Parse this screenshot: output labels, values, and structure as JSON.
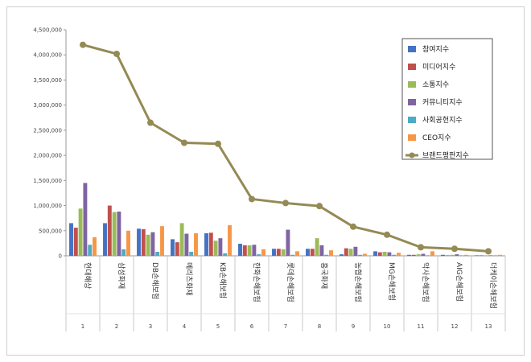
{
  "chart_data": {
    "type": "bar",
    "title": "",
    "xlabel": "",
    "ylabel": "",
    "ylim": [
      0,
      4500000
    ],
    "yticks": [
      "0",
      "500,000",
      "1,000,000",
      "1,500,000",
      "2,000,000",
      "2,500,000",
      "3,000,000",
      "3,500,000",
      "4,000,000",
      "4,500,000"
    ],
    "ytick_values": [
      0,
      500000,
      1000000,
      1500000,
      2000000,
      2500000,
      3000000,
      3500000,
      4000000,
      4500000
    ],
    "grid": false,
    "legend_position": "top-right",
    "categories": [
      "현대해상",
      "삼성화재",
      "DB손해보험",
      "메리츠화재",
      "KB손해보험",
      "한화손해보험",
      "롯데손해보험",
      "흥국화재",
      "농협손해보험",
      "MG손해보험",
      "악사손해보험",
      "AIG손해보험",
      "더케이손해보험"
    ],
    "ranks": [
      "1",
      "2",
      "3",
      "4",
      "5",
      "6",
      "7",
      "8",
      "9",
      "10",
      "11",
      "12",
      "13"
    ],
    "series": [
      {
        "name": "참여지수",
        "type": "bar",
        "color": "#4472c4",
        "values": [
          650000,
          650000,
          540000,
          330000,
          450000,
          240000,
          140000,
          140000,
          30000,
          90000,
          20000,
          20000,
          10000
        ]
      },
      {
        "name": "미디어지수",
        "type": "bar",
        "color": "#c0504d",
        "values": [
          560000,
          1000000,
          530000,
          270000,
          460000,
          210000,
          140000,
          140000,
          150000,
          70000,
          20000,
          10000,
          10000
        ]
      },
      {
        "name": "소통지수",
        "type": "bar",
        "color": "#9bbb59",
        "values": [
          940000,
          870000,
          420000,
          650000,
          300000,
          210000,
          130000,
          350000,
          140000,
          80000,
          30000,
          20000,
          10000
        ]
      },
      {
        "name": "커뮤니티지수",
        "type": "bar",
        "color": "#8064a2",
        "values": [
          1450000,
          880000,
          470000,
          440000,
          350000,
          220000,
          520000,
          210000,
          180000,
          70000,
          40000,
          30000,
          10000
        ]
      },
      {
        "name": "사회공헌지수",
        "type": "bar",
        "color": "#4bacc6",
        "values": [
          220000,
          130000,
          80000,
          80000,
          50000,
          30000,
          20000,
          20000,
          20000,
          20000,
          10000,
          10000,
          10000
        ]
      },
      {
        "name": "CEO지수",
        "type": "bar",
        "color": "#f79646",
        "values": [
          370000,
          500000,
          590000,
          450000,
          610000,
          130000,
          90000,
          110000,
          40000,
          60000,
          90000,
          20000,
          20000
        ]
      },
      {
        "name": "브랜드평판지수",
        "type": "line",
        "color": "#948a54",
        "values": [
          4200000,
          4020000,
          2650000,
          2250000,
          2230000,
          1130000,
          1050000,
          990000,
          580000,
          420000,
          170000,
          140000,
          90000
        ]
      }
    ]
  }
}
